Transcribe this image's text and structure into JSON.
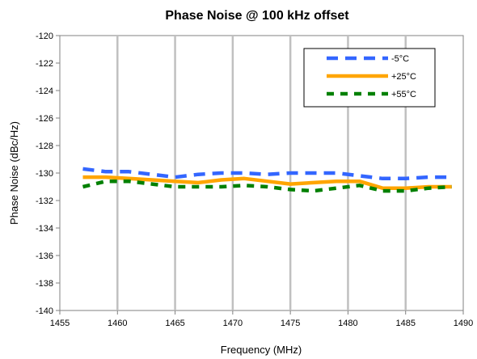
{
  "chart_data": {
    "type": "line",
    "title": "Phase Noise @ 100 kHz offset",
    "xlabel": "Frequency (MHz)",
    "ylabel": "Phase Noise (dBc/Hz)",
    "xlim": [
      1455,
      1490
    ],
    "ylim": [
      -140,
      -120
    ],
    "xticks": [
      1455,
      1460,
      1465,
      1470,
      1475,
      1480,
      1485,
      1490
    ],
    "yticks": [
      -120,
      -122,
      -124,
      -126,
      -128,
      -130,
      -132,
      -134,
      -136,
      -138,
      -140
    ],
    "grid": "vertical",
    "legend_position": "top-right",
    "series": [
      {
        "name": "-5°C",
        "color": "#3366ff",
        "style": "dashed",
        "x": [
          1457,
          1459,
          1461,
          1463,
          1465,
          1467,
          1469,
          1471,
          1473,
          1475,
          1477,
          1479,
          1481,
          1483,
          1485,
          1487,
          1489
        ],
        "y": [
          -129.7,
          -129.9,
          -129.9,
          -130.1,
          -130.3,
          -130.1,
          -130.0,
          -130.0,
          -130.1,
          -130.0,
          -130.0,
          -130.0,
          -130.2,
          -130.4,
          -130.4,
          -130.3,
          -130.3
        ]
      },
      {
        "name": "+25°C",
        "color": "#ffa500",
        "style": "solid",
        "x": [
          1457,
          1459,
          1461,
          1463,
          1465,
          1467,
          1469,
          1471,
          1473,
          1475,
          1477,
          1479,
          1481,
          1483,
          1485,
          1487,
          1489
        ],
        "y": [
          -130.3,
          -130.3,
          -130.4,
          -130.5,
          -130.6,
          -130.7,
          -130.5,
          -130.4,
          -130.6,
          -130.8,
          -130.7,
          -130.6,
          -130.6,
          -131.1,
          -131.1,
          -131.0,
          -131.0
        ]
      },
      {
        "name": "+55°C",
        "color": "#008000",
        "style": "dotted",
        "x": [
          1457,
          1459,
          1461,
          1463,
          1465,
          1467,
          1469,
          1471,
          1473,
          1475,
          1477,
          1479,
          1481,
          1483,
          1485,
          1487,
          1489
        ],
        "y": [
          -131.0,
          -130.6,
          -130.6,
          -130.8,
          -131.0,
          -131.0,
          -131.0,
          -130.9,
          -131.0,
          -131.2,
          -131.3,
          -131.1,
          -130.9,
          -131.3,
          -131.3,
          -131.1,
          -131.0
        ]
      }
    ]
  }
}
